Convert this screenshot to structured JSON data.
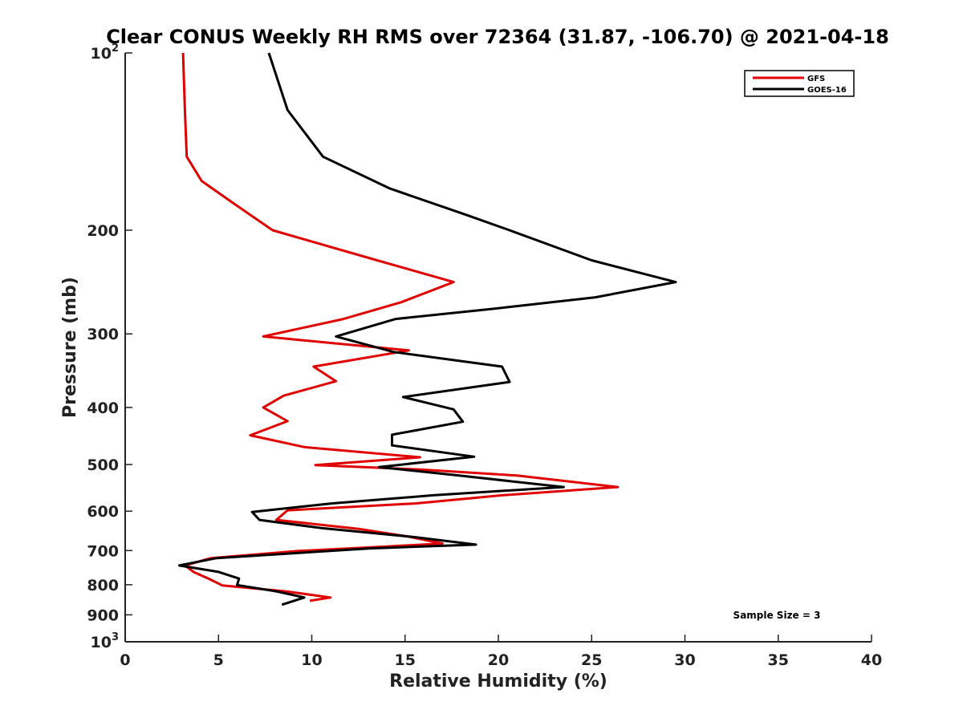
{
  "chart_data": {
    "type": "line",
    "title": "Clear CONUS Weekly RH RMS over 72364 (31.87, -106.70) @ 2021-04-18",
    "xlabel": "Relative Humidity (%)",
    "ylabel": "Pressure (mb)",
    "xlim": [
      0,
      40
    ],
    "ylim": [
      100,
      1000
    ],
    "y_scale": "log",
    "y_reversed": true,
    "x_ticks": [
      0,
      5,
      10,
      15,
      20,
      25,
      30,
      35,
      40
    ],
    "x_tick_labels": [
      "0",
      "5",
      "10",
      "15",
      "20",
      "25",
      "30",
      "35",
      "40"
    ],
    "y_ticks": [
      100,
      200,
      300,
      400,
      500,
      600,
      700,
      800,
      900,
      1000
    ],
    "y_tick_labels": [
      {
        "base": "10",
        "sup": "2"
      },
      {
        "base": "200",
        "sup": ""
      },
      {
        "base": "300",
        "sup": ""
      },
      {
        "base": "400",
        "sup": ""
      },
      {
        "base": "500",
        "sup": ""
      },
      {
        "base": "600",
        "sup": ""
      },
      {
        "base": "700",
        "sup": ""
      },
      {
        "base": "800",
        "sup": ""
      },
      {
        "base": "900",
        "sup": ""
      },
      {
        "base": "10",
        "sup": "3"
      }
    ],
    "grid": false,
    "legend_position": "top-right",
    "annotation": "Sample Size = 3",
    "series": [
      {
        "name": "GFS",
        "color": "#e00000",
        "points": [
          {
            "x": 3.1,
            "p": 100
          },
          {
            "x": 3.2,
            "p": 125
          },
          {
            "x": 3.3,
            "p": 150
          },
          {
            "x": 4.1,
            "p": 165
          },
          {
            "x": 5.8,
            "p": 180
          },
          {
            "x": 7.9,
            "p": 200
          },
          {
            "x": 13.5,
            "p": 225
          },
          {
            "x": 17.6,
            "p": 245
          },
          {
            "x": 14.8,
            "p": 265
          },
          {
            "x": 11.7,
            "p": 283
          },
          {
            "x": 7.4,
            "p": 303
          },
          {
            "x": 15.2,
            "p": 320
          },
          {
            "x": 10.1,
            "p": 341
          },
          {
            "x": 11.3,
            "p": 361
          },
          {
            "x": 8.5,
            "p": 382
          },
          {
            "x": 7.4,
            "p": 400
          },
          {
            "x": 8.7,
            "p": 422
          },
          {
            "x": 6.7,
            "p": 446
          },
          {
            "x": 9.6,
            "p": 467
          },
          {
            "x": 15.8,
            "p": 486
          },
          {
            "x": 10.2,
            "p": 501
          },
          {
            "x": 15.9,
            "p": 510
          },
          {
            "x": 21.0,
            "p": 522
          },
          {
            "x": 26.4,
            "p": 546
          },
          {
            "x": 20.2,
            "p": 564
          },
          {
            "x": 15.6,
            "p": 582
          },
          {
            "x": 8.7,
            "p": 598
          },
          {
            "x": 8.1,
            "p": 621
          },
          {
            "x": 12.5,
            "p": 643
          },
          {
            "x": 15.2,
            "p": 663
          },
          {
            "x": 17.0,
            "p": 681
          },
          {
            "x": 14.0,
            "p": 689
          },
          {
            "x": 9.3,
            "p": 701
          },
          {
            "x": 4.6,
            "p": 721
          },
          {
            "x": 3.2,
            "p": 742
          },
          {
            "x": 3.7,
            "p": 762
          },
          {
            "x": 4.5,
            "p": 782
          },
          {
            "x": 5.2,
            "p": 802
          },
          {
            "x": 8.6,
            "p": 821
          },
          {
            "x": 11.0,
            "p": 841
          },
          {
            "x": 9.9,
            "p": 852
          }
        ]
      },
      {
        "name": "GOES-16",
        "color": "#000000",
        "points": [
          {
            "x": 7.7,
            "p": 100
          },
          {
            "x": 8.7,
            "p": 125
          },
          {
            "x": 10.6,
            "p": 150
          },
          {
            "x": 14.2,
            "p": 170
          },
          {
            "x": 18.2,
            "p": 188
          },
          {
            "x": 20.6,
            "p": 200
          },
          {
            "x": 25.0,
            "p": 225
          },
          {
            "x": 29.5,
            "p": 245
          },
          {
            "x": 25.2,
            "p": 260
          },
          {
            "x": 19.7,
            "p": 272
          },
          {
            "x": 14.5,
            "p": 283
          },
          {
            "x": 11.3,
            "p": 303
          },
          {
            "x": 14.4,
            "p": 322
          },
          {
            "x": 20.2,
            "p": 341
          },
          {
            "x": 20.6,
            "p": 362
          },
          {
            "x": 14.9,
            "p": 384
          },
          {
            "x": 17.6,
            "p": 403
          },
          {
            "x": 18.1,
            "p": 423
          },
          {
            "x": 14.3,
            "p": 445
          },
          {
            "x": 14.3,
            "p": 464
          },
          {
            "x": 18.7,
            "p": 485
          },
          {
            "x": 13.6,
            "p": 505
          },
          {
            "x": 17.9,
            "p": 522
          },
          {
            "x": 23.5,
            "p": 546
          },
          {
            "x": 16.5,
            "p": 564
          },
          {
            "x": 11.1,
            "p": 582
          },
          {
            "x": 6.8,
            "p": 602
          },
          {
            "x": 7.2,
            "p": 621
          },
          {
            "x": 10.5,
            "p": 641
          },
          {
            "x": 15.5,
            "p": 664
          },
          {
            "x": 18.8,
            "p": 684
          },
          {
            "x": 13.1,
            "p": 694
          },
          {
            "x": 4.9,
            "p": 721
          },
          {
            "x": 2.9,
            "p": 742
          },
          {
            "x": 5.0,
            "p": 761
          },
          {
            "x": 6.1,
            "p": 781
          },
          {
            "x": 6.0,
            "p": 801
          },
          {
            "x": 8.1,
            "p": 821
          },
          {
            "x": 9.6,
            "p": 841
          },
          {
            "x": 8.4,
            "p": 865
          }
        ]
      }
    ]
  }
}
